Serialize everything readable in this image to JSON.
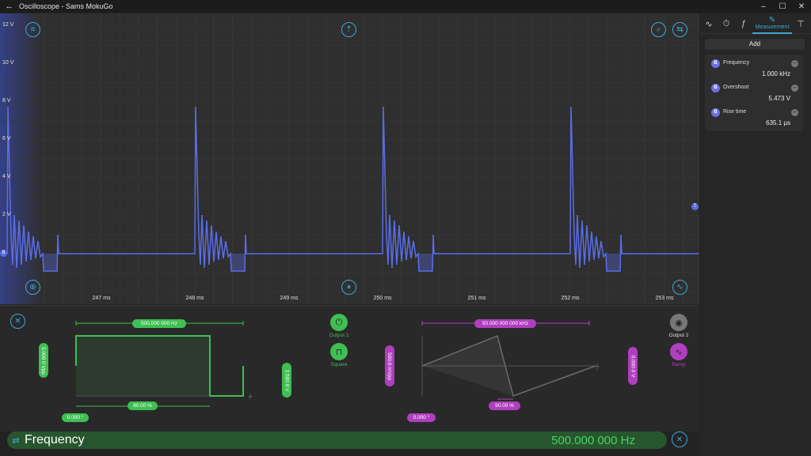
{
  "window": {
    "title": "Oscilloscope - Sams MokuGo"
  },
  "scope": {
    "y_axis_labels": [
      "12 V",
      "10 V",
      "8 V",
      "6 V",
      "4 V",
      "2 V"
    ],
    "x_axis_labels": [
      "247 ms",
      "248 ms",
      "249 ms",
      "250 ms",
      "251 ms",
      "252 ms",
      "253 ms"
    ],
    "trigger_marker": "T",
    "channel_marker": "B",
    "trace_color": "#5a6de8"
  },
  "panel": {
    "tabs": [
      "waveform-icon",
      "timer-icon",
      "math-icon",
      "Measurement",
      "probe-icon"
    ],
    "active_tab": "Measurement",
    "add_label": "Add",
    "measurements": [
      {
        "channel": "B",
        "name": "Frequency",
        "value": "1.000 kHz"
      },
      {
        "channel": "B",
        "name": "Overshoot",
        "value": "5.473 V"
      },
      {
        "channel": "B",
        "name": "Rise time",
        "value": "635.1 µs"
      }
    ]
  },
  "output1": {
    "label": "Output 1",
    "waveform": "Square",
    "frequency": "500.000 000  Hz",
    "amplitude": "5.000 0  Vpp",
    "offset": "2.500 0  V",
    "duty": "80.00  %",
    "phase": "0.000  °",
    "color": "#3fbf53"
  },
  "output2": {
    "label": "Output 2",
    "waveform": "Ramp",
    "frequency": "50.000 000 000  kHz",
    "amplitude": "500.0  mVpp",
    "offset": "0.000 0  V",
    "symmetry": "90.00  %",
    "phase": "0.000  °",
    "color": "#b03fbf"
  },
  "freq_bar": {
    "label": "Frequency",
    "value": "500.000 000  Hz"
  }
}
